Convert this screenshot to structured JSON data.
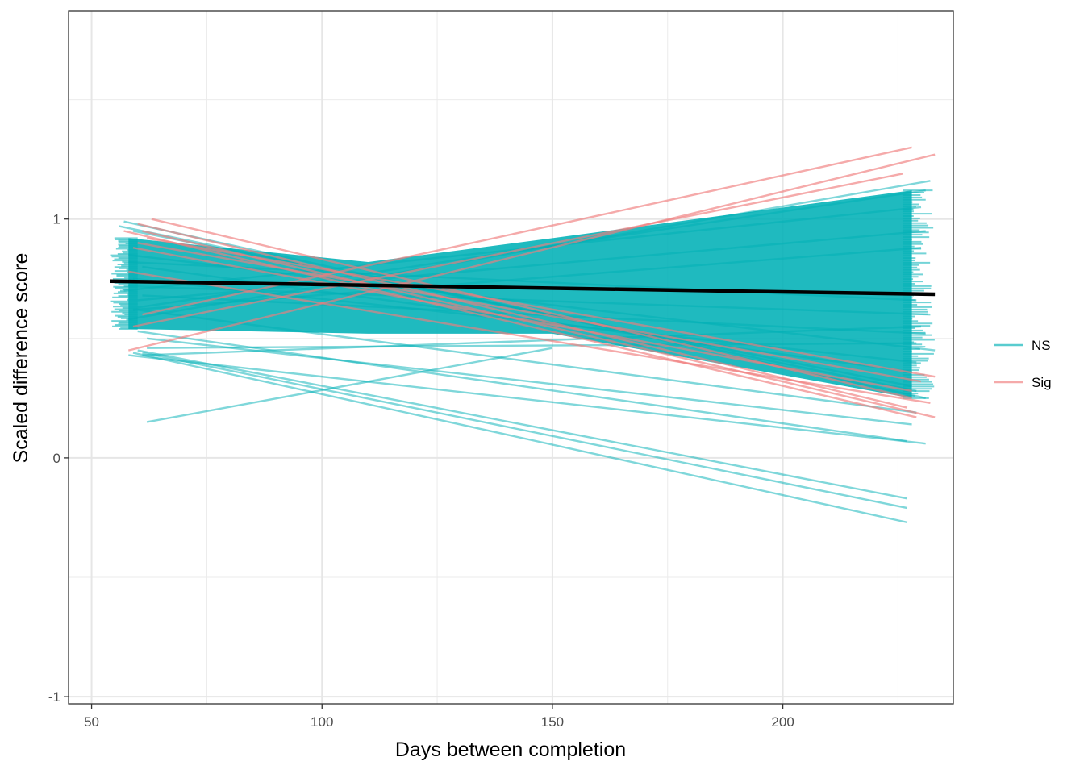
{
  "chart_data": {
    "type": "line",
    "title": "",
    "xlabel": "Days between completion",
    "ylabel": "Scaled difference score",
    "xlim": [
      45,
      237
    ],
    "ylim": [
      -1.03,
      1.87
    ],
    "x_ticks": [
      50,
      100,
      150,
      200
    ],
    "x_tick_labels": [
      "50",
      "100",
      "150",
      "200"
    ],
    "y_ticks": [
      -1,
      0,
      1
    ],
    "y_tick_labels": [
      "-1",
      "0",
      "1"
    ],
    "grid": true,
    "legend_position": "right",
    "legend": [
      {
        "name": "NS",
        "color": "#00B0B6"
      },
      {
        "name": "Sig",
        "color": "#F07C7C"
      }
    ],
    "mean_fit": {
      "color": "#000000",
      "x": [
        54,
        233
      ],
      "y": [
        0.74,
        0.685
      ]
    },
    "series": [
      {
        "name": "Sig",
        "color": "#F07C7C",
        "opacity": 0.65,
        "lines": [
          {
            "x": [
              60,
              227
            ],
            "y": [
              0.98,
              0.21
            ]
          },
          {
            "x": [
              58,
              233
            ],
            "y": [
              0.45,
              1.27
            ]
          },
          {
            "x": [
              63,
              228
            ],
            "y": [
              1.0,
              0.25
            ]
          },
          {
            "x": [
              57,
              229
            ],
            "y": [
              0.95,
              0.17
            ]
          },
          {
            "x": [
              61,
              228
            ],
            "y": [
              0.6,
              1.3
            ]
          },
          {
            "x": [
              59,
              226
            ],
            "y": [
              0.55,
              1.19
            ]
          },
          {
            "x": [
              62,
              233
            ],
            "y": [
              0.92,
              0.34
            ]
          },
          {
            "x": [
              60,
              230
            ],
            "y": [
              0.9,
              0.32
            ]
          },
          {
            "x": [
              59,
              228
            ],
            "y": [
              0.88,
              0.28
            ]
          },
          {
            "x": [
              58,
              232
            ],
            "y": [
              0.78,
              0.23
            ]
          },
          {
            "x": [
              61,
              233
            ],
            "y": [
              0.95,
              0.17
            ]
          }
        ]
      },
      {
        "name": "NS",
        "color": "#00B0B6",
        "opacity": 0.5,
        "lines": [
          {
            "x": [
              60,
              227
            ],
            "y": [
              0.45,
              -0.17
            ]
          },
          {
            "x": [
              59,
              227
            ],
            "y": [
              0.44,
              -0.27
            ]
          },
          {
            "x": [
              61,
              227
            ],
            "y": [
              0.44,
              -0.21
            ]
          },
          {
            "x": [
              62,
              150
            ],
            "y": [
              0.15,
              0.46
            ]
          },
          {
            "x": [
              58,
              231
            ],
            "y": [
              0.43,
              0.06
            ]
          },
          {
            "x": [
              60,
              227
            ],
            "y": [
              0.53,
              0.07
            ]
          },
          {
            "x": [
              62,
              228
            ],
            "y": [
              0.5,
              0.14
            ]
          },
          {
            "x": [
              60,
              229
            ],
            "y": [
              0.62,
              0.19
            ]
          },
          {
            "x": [
              57,
              231
            ],
            "y": [
              0.99,
              0.25
            ]
          },
          {
            "x": [
              59,
              228
            ],
            "y": [
              0.95,
              0.3
            ]
          },
          {
            "x": [
              56,
              229
            ],
            "y": [
              0.97,
              0.28
            ]
          },
          {
            "x": [
              61,
              230
            ],
            "y": [
              0.43,
              0.55
            ]
          },
          {
            "x": [
              62,
              229
            ],
            "y": [
              0.46,
              0.48
            ]
          },
          {
            "x": [
              58,
              232
            ],
            "y": [
              0.58,
              1.16
            ]
          },
          {
            "x": [
              60,
              231
            ],
            "y": [
              0.63,
              1.12
            ]
          },
          {
            "x": [
              57,
              230
            ],
            "y": [
              0.7,
              1.05
            ]
          },
          {
            "x": [
              59,
              229
            ],
            "y": [
              0.75,
              0.4
            ]
          },
          {
            "x": [
              61,
              228
            ],
            "y": [
              0.8,
              0.36
            ]
          },
          {
            "x": [
              58,
              233
            ],
            "y": [
              0.85,
              0.45
            ]
          },
          {
            "x": [
              60,
              231
            ],
            "y": [
              0.66,
              0.95
            ]
          },
          {
            "x": [
              57,
              232
            ],
            "y": [
              0.72,
              0.6
            ]
          },
          {
            "x": [
              59,
              230
            ],
            "y": [
              0.62,
              0.88
            ]
          },
          {
            "x": [
              61,
              231
            ],
            "y": [
              0.68,
              0.52
            ]
          },
          {
            "x": [
              58,
              229
            ],
            "y": [
              0.82,
              0.66
            ]
          }
        ]
      }
    ]
  }
}
